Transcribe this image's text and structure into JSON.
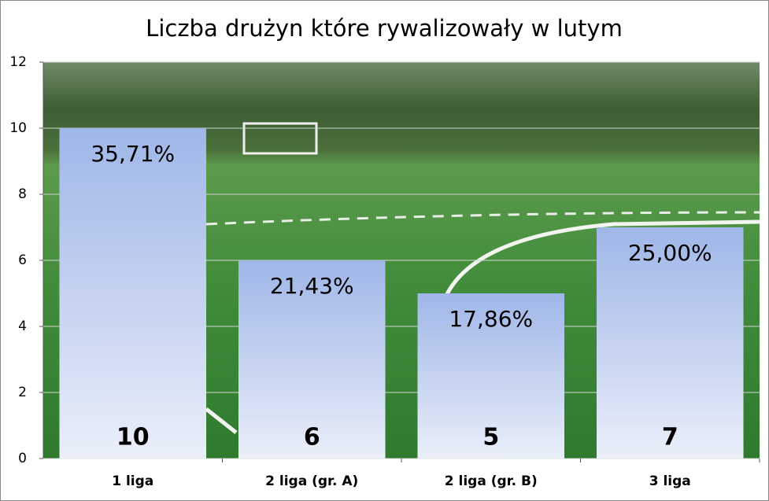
{
  "chart_data": {
    "type": "bar",
    "title": "Liczba drużyn które rywalizowały w lutym",
    "categories": [
      "1 liga",
      "2 liga (gr. A)",
      "2 liga (gr. B)",
      "3 liga"
    ],
    "values": [
      10,
      6,
      5,
      7
    ],
    "percent_labels": [
      "35,71%",
      "21,43%",
      "17,86%",
      "25,00%"
    ],
    "color": "#9fb6e8",
    "ylim": [
      0,
      12
    ],
    "yticks": [
      0,
      2,
      4,
      6,
      8,
      10,
      12
    ],
    "grid": true
  }
}
